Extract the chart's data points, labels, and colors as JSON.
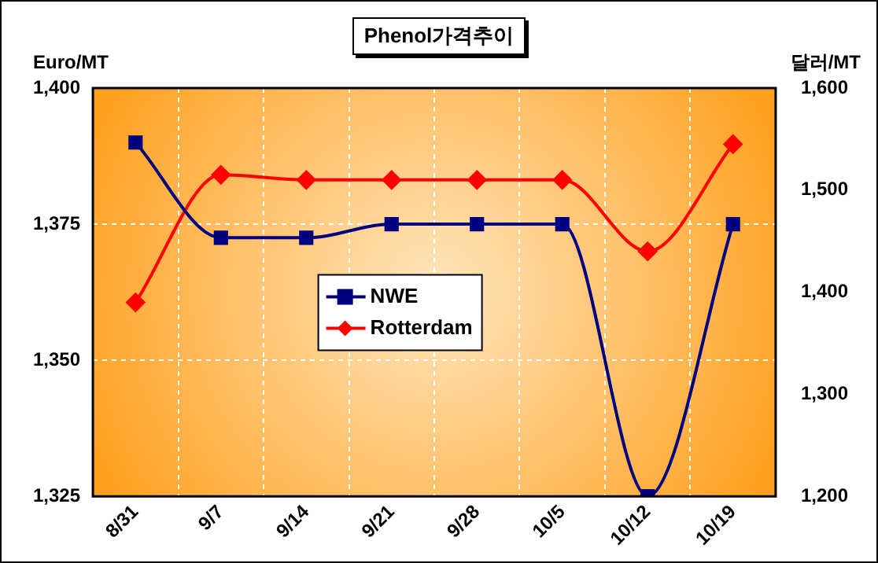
{
  "chart_data": {
    "type": "line",
    "title": "Phenol가격추이",
    "ylabel": "Euro/MT",
    "y2label": "달러/MT",
    "categories": [
      "8/31",
      "9/7",
      "9/14",
      "9/21",
      "9/28",
      "10/5",
      "10/12",
      "10/19"
    ],
    "series": [
      {
        "name": "NWE",
        "color": "#000080",
        "marker": "square",
        "values": [
          1390,
          1372.5,
          1372.5,
          1375,
          1375,
          1375,
          1325,
          1375
        ]
      },
      {
        "name": "Rotterdam",
        "color": "#ff0000",
        "marker": "diamond",
        "axis": "y2",
        "values": [
          1390,
          1515,
          1510,
          1510,
          1510,
          1510,
          1440,
          1545
        ]
      }
    ],
    "ylim": [
      1325,
      1400
    ],
    "yticks": [
      {
        "value": 1325,
        "label": "1,325"
      },
      {
        "value": 1350,
        "label": "1,350"
      },
      {
        "value": 1375,
        "label": "1,375"
      },
      {
        "value": 1400,
        "label": "1,400"
      }
    ],
    "y2lim": [
      1200,
      1600
    ],
    "y2ticks": [
      {
        "value": 1200,
        "label": "1,200"
      },
      {
        "value": 1300,
        "label": "1,300"
      },
      {
        "value": 1400,
        "label": "1,400"
      },
      {
        "value": 1500,
        "label": "1,500"
      },
      {
        "value": 1600,
        "label": "1,600"
      }
    ],
    "grid": true,
    "legend": "center"
  }
}
